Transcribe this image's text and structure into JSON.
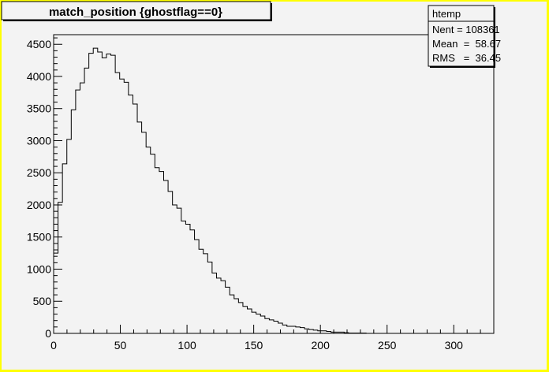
{
  "chart_data": {
    "type": "histogram",
    "title": "match_position {ghostflag==0}",
    "stats": {
      "name": "htemp",
      "lines": [
        "Nent = 108361",
        "Mean  =  58.67",
        "RMS   =  36.45"
      ]
    },
    "xlim": [
      0,
      330
    ],
    "ylim": [
      0,
      4650
    ],
    "x_ticks": [
      0,
      50,
      100,
      150,
      200,
      250,
      300
    ],
    "y_ticks": [
      0,
      500,
      1000,
      1500,
      2000,
      2500,
      3000,
      3500,
      4000,
      4500
    ],
    "bin_start": 0,
    "bin_width": 3.3,
    "counts": [
      1250,
      2040,
      2640,
      3020,
      3480,
      3790,
      3900,
      4130,
      4360,
      4440,
      4380,
      4290,
      4350,
      4330,
      4060,
      3960,
      3910,
      3710,
      3570,
      3290,
      3130,
      2900,
      2790,
      2580,
      2520,
      2380,
      2210,
      2000,
      1950,
      1750,
      1700,
      1610,
      1460,
      1310,
      1240,
      1110,
      940,
      860,
      820,
      720,
      600,
      540,
      480,
      420,
      380,
      330,
      300,
      270,
      230,
      210,
      190,
      160,
      130,
      110,
      110,
      100,
      90,
      70,
      60,
      50,
      40,
      40,
      30,
      20,
      20,
      20,
      10,
      5,
      5,
      5,
      5,
      0,
      0,
      0,
      0,
      0,
      0,
      0,
      0,
      0,
      0,
      0,
      0,
      0,
      0,
      0,
      0,
      0,
      0,
      0,
      0,
      0,
      0,
      0,
      0,
      0,
      0,
      0,
      0,
      0
    ]
  }
}
